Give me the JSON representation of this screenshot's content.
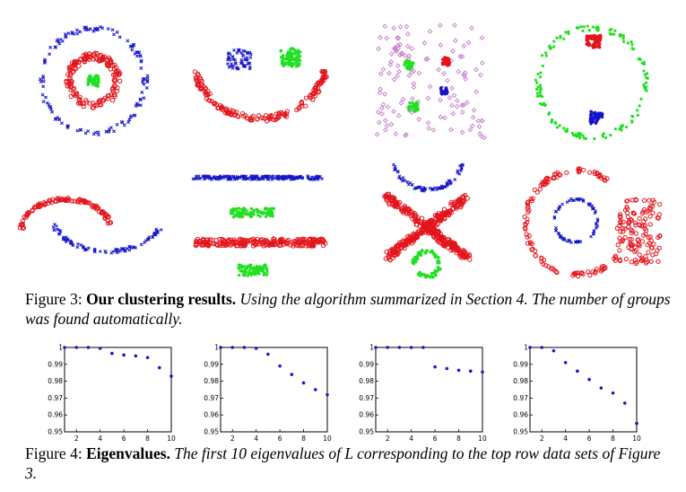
{
  "figure3": {
    "label": "Figure 3:",
    "title": "Our clustering results.",
    "text": "Using the algorithm summarized in Section 4.  The number of groups was found automatically."
  },
  "figure4": {
    "label": "Figure 4:",
    "title": "Eigenvalues.",
    "text": "The first 10 eigenvalues of L corresponding to the top row data sets of Figure 3."
  },
  "colors": {
    "red": "#e3141b",
    "blue": "#1414c8",
    "green": "#22e022",
    "pink": "#c47ac9"
  },
  "scatter_panels": [
    {
      "name": "concentric-rings"
    },
    {
      "name": "smiley-face"
    },
    {
      "name": "squares-in-noise"
    },
    {
      "name": "ring-with-two-clusters"
    },
    {
      "name": "two-moons"
    },
    {
      "name": "horizontal-lines"
    },
    {
      "name": "cross-with-arc-and-ring"
    },
    {
      "name": "rings-with-noise-blob"
    }
  ],
  "chart_data": [
    {
      "type": "scatter",
      "x": [
        1,
        2,
        3,
        4,
        5,
        6,
        7,
        8,
        9,
        10
      ],
      "values": [
        1.0,
        1.0,
        1.0,
        0.9995,
        0.9965,
        0.9955,
        0.995,
        0.994,
        0.988,
        0.983
      ],
      "ylim": [
        0.95,
        1.0
      ],
      "xlim": [
        1,
        10
      ],
      "yticks": [
        "1",
        "0.99",
        "0.98",
        "0.97",
        "0.96",
        "0.95"
      ],
      "xticks": [
        "2",
        "4",
        "6",
        "8",
        "10"
      ]
    },
    {
      "type": "scatter",
      "x": [
        1,
        2,
        3,
        4,
        5,
        6,
        7,
        8,
        9,
        10
      ],
      "values": [
        1.0,
        1.0,
        1.0,
        0.9995,
        0.996,
        0.989,
        0.984,
        0.979,
        0.975,
        0.972
      ],
      "ylim": [
        0.95,
        1.0
      ],
      "xlim": [
        1,
        10
      ],
      "yticks": [
        "1",
        "0.99",
        "0.98",
        "0.97",
        "0.96",
        "0.95"
      ],
      "xticks": [
        "2",
        "4",
        "6",
        "8",
        "10"
      ]
    },
    {
      "type": "scatter",
      "x": [
        1,
        2,
        3,
        4,
        5,
        6,
        7,
        8,
        9,
        10
      ],
      "values": [
        1.0,
        1.0,
        1.0,
        1.0,
        1.0,
        0.9885,
        0.9875,
        0.9865,
        0.986,
        0.9855
      ],
      "ylim": [
        0.95,
        1.0
      ],
      "xlim": [
        1,
        10
      ],
      "yticks": [
        "1",
        "0.99",
        "0.98",
        "0.97",
        "0.96",
        "0.95"
      ],
      "xticks": [
        "2",
        "4",
        "6",
        "8",
        "10"
      ]
    },
    {
      "type": "scatter",
      "x": [
        1,
        2,
        3,
        4,
        5,
        6,
        7,
        8,
        9,
        10
      ],
      "values": [
        1.0,
        1.0,
        0.998,
        0.991,
        0.986,
        0.981,
        0.976,
        0.973,
        0.967,
        0.955
      ],
      "ylim": [
        0.95,
        1.0
      ],
      "xlim": [
        1,
        10
      ],
      "yticks": [
        "1",
        "0.99",
        "0.98",
        "0.97",
        "0.96",
        "0.95"
      ],
      "xticks": [
        "2",
        "4",
        "6",
        "8",
        "10"
      ]
    }
  ]
}
